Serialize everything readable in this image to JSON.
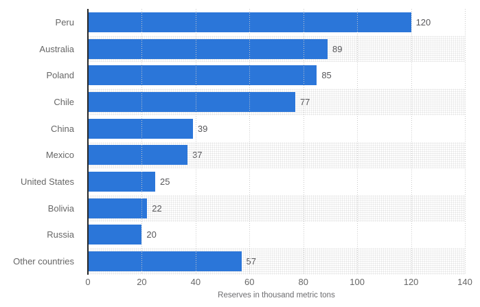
{
  "chart_data": {
    "type": "bar",
    "orientation": "horizontal",
    "categories": [
      "Peru",
      "Australia",
      "Poland",
      "Chile",
      "China",
      "Mexico",
      "United States",
      "Bolivia",
      "Russia",
      "Other countries"
    ],
    "values": [
      120,
      89,
      85,
      77,
      39,
      37,
      25,
      22,
      20,
      57
    ],
    "value_labels": [
      "120",
      "89",
      "85",
      "77",
      "39",
      "37",
      "25",
      "22",
      "20",
      "57"
    ],
    "xlabel": "Reserves in thousand metric tons",
    "xlim": [
      0,
      140
    ],
    "xticks": [
      0,
      20,
      40,
      60,
      80,
      100,
      120,
      140
    ],
    "xtick_labels": [
      "0",
      "20",
      "40",
      "60",
      "80",
      "100",
      "120",
      "140"
    ],
    "grid": true,
    "legend": false,
    "colors": {
      "bar": "#2b76d9",
      "band_dot": "#e3e3e3",
      "gridline": "#c9c9c9",
      "axis_line": "#262626",
      "category_label": "#666666",
      "value_label": "#565659",
      "tick_label": "#666666",
      "axis_title": "#6b6b6e",
      "background": "#ffffff"
    }
  }
}
